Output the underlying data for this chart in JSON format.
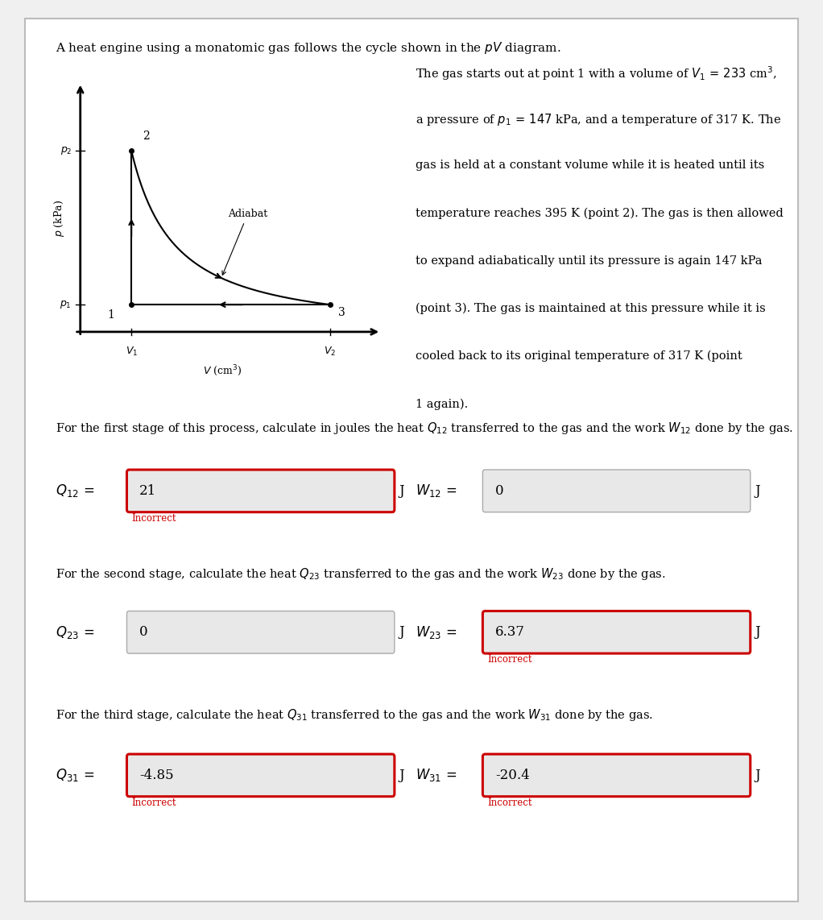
{
  "title_text": "A heat engine using a monatomic gas follows the cycle shown in the $pV$ diagram.",
  "desc_lines": [
    "The gas starts out at point 1 with a volume of $V_1\\,=\\,233$ cm$^3$,",
    "a pressure of $p_1\\,=\\,147$ kPa, and a temperature of 317 K. The",
    "gas is held at a constant volume while it is heated until its",
    "temperature reaches 395 K (point 2). The gas is then allowed",
    "to expand adiabatically until its pressure is again 147 kPa",
    "(point 3). The gas is maintained at this pressure while it is",
    "cooled back to its original temperature of 317 K (point",
    "1 again)."
  ],
  "stage1_text": "For the first stage of this process, calculate in joules the heat $Q_{12}$ transferred to the gas and the work $W_{12}$ done by the gas.",
  "stage2_text": "For the second stage, calculate the heat $Q_{23}$ transferred to the gas and the work $W_{23}$ done by the gas.",
  "stage3_text": "For the third stage, calculate the heat $Q_{31}$ transferred to the gas and the work $W_{31}$ done by the gas.",
  "q12_label": "$Q_{12}\\,=$",
  "w12_label": "$W_{12}\\,=$",
  "q23_label": "$Q_{23}\\,=$",
  "w23_label": "$W_{23}\\,=$",
  "q31_label": "$Q_{31}\\,=$",
  "w31_label": "$W_{31}\\,=$",
  "q12_value": "21",
  "w12_value": "0",
  "q23_value": "0",
  "w23_value": "6.37",
  "q31_value": "-4.85",
  "w31_value": "-20.4",
  "q12_incorrect": true,
  "w12_incorrect": false,
  "q23_incorrect": false,
  "w23_incorrect": true,
  "q31_incorrect": true,
  "w31_incorrect": true,
  "bg_color": "#ffffff",
  "card_bg": "#ffffff",
  "card_border": "#bbbbbb",
  "incorrect_border_color": "#cc0000",
  "incorrect_text_color": "#cc0000",
  "normal_border_color": "#aaaaaa",
  "box_bg_color": "#e8e8e8",
  "text_color": "#000000",
  "incorrect_label": "Incorrect"
}
